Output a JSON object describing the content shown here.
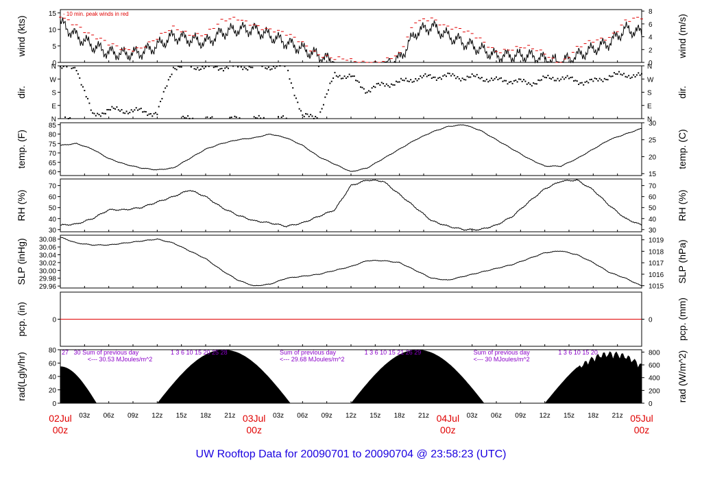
{
  "title": "UW Rooftop Data for 20090701  to  20090704 @ 23:58:23  (UTC)",
  "colors": {
    "wind_peak": "#e00000",
    "pcp_line": "#e00000",
    "purple_note": "#8a00c8",
    "footer": "#1a00e0",
    "date": "#e00000"
  },
  "time_axis": {
    "hours_span": [
      0,
      72
    ],
    "ticks": [
      {
        "h": 3,
        "label": "03z"
      },
      {
        "h": 6,
        "label": "06z"
      },
      {
        "h": 9,
        "label": "09z"
      },
      {
        "h": 12,
        "label": "12z"
      },
      {
        "h": 15,
        "label": "15z"
      },
      {
        "h": 18,
        "label": "18z"
      },
      {
        "h": 21,
        "label": "21z"
      },
      {
        "h": 27,
        "label": "03z"
      },
      {
        "h": 30,
        "label": "06z"
      },
      {
        "h": 33,
        "label": "09z"
      },
      {
        "h": 36,
        "label": "12z"
      },
      {
        "h": 39,
        "label": "15z"
      },
      {
        "h": 42,
        "label": "18z"
      },
      {
        "h": 45,
        "label": "21z"
      },
      {
        "h": 51,
        "label": "03z"
      },
      {
        "h": 54,
        "label": "06z"
      },
      {
        "h": 57,
        "label": "09z"
      },
      {
        "h": 60,
        "label": "12z"
      },
      {
        "h": 63,
        "label": "15z"
      },
      {
        "h": 66,
        "label": "18z"
      },
      {
        "h": 69,
        "label": "21z"
      }
    ],
    "dates": [
      {
        "h": 0,
        "line1": "02Jul",
        "line2": "00z"
      },
      {
        "h": 24,
        "line1": "03Jul",
        "line2": "00z"
      },
      {
        "h": 48,
        "line1": "04Jul",
        "line2": "00z"
      },
      {
        "h": 72,
        "line1": "05Jul",
        "line2": "00z"
      }
    ]
  },
  "panels": {
    "wind": {
      "left_label": "wind (kts)",
      "right_label": "wind (m/s)",
      "left_ticks": [
        "0",
        "5",
        "10",
        "15"
      ],
      "right_ticks": [
        "0",
        "2",
        "4",
        "6",
        "8"
      ],
      "note": "- 10 min. peak winds in red"
    },
    "dir": {
      "left_label": "dir.",
      "right_label": "dir.",
      "ticks": [
        "N",
        "E",
        "S",
        "W",
        "N"
      ]
    },
    "temp": {
      "left_label": "temp. (F)",
      "right_label": "temp. (C)",
      "left_ticks": [
        "60",
        "65",
        "70",
        "75",
        "80",
        "85"
      ],
      "right_ticks": [
        "15",
        "20",
        "25",
        "30"
      ]
    },
    "rh": {
      "left_label": "RH (%)",
      "right_label": "RH (%)",
      "left_ticks": [
        "30",
        "40",
        "50",
        "60",
        "70"
      ],
      "right_ticks": [
        "30",
        "40",
        "50",
        "60",
        "70"
      ]
    },
    "slp": {
      "left_label": "SLP (inHg)",
      "right_label": "SLP (hPa)",
      "left_ticks": [
        "29.96",
        "29.98",
        "30.00",
        "30.02",
        "30.04",
        "30.06",
        "30.08"
      ],
      "right_ticks": [
        "1015",
        "1016",
        "1017",
        "1018",
        "1019"
      ]
    },
    "pcp": {
      "left_label": "pcp. (in)",
      "right_label": "pcp. (mm)",
      "left_ticks": [
        "0"
      ],
      "right_ticks": [
        "0"
      ]
    },
    "rad": {
      "left_label": "rad(Lgly/hr)",
      "right_label": "rad (W/m^2)",
      "left_ticks": [
        "0",
        "20",
        "40",
        "60",
        "80"
      ],
      "right_ticks": [
        "0",
        "200",
        "400",
        "600",
        "800"
      ],
      "notes": [
        {
          "h": 1.5,
          "row": 1,
          "text": "30  Sum of previous day"
        },
        {
          "h": 0.0,
          "row": 1,
          "text": "27"
        },
        {
          "h": 3.2,
          "row": 2,
          "text": "<--- 30.53 MJoules/m^2"
        },
        {
          "h": 27.0,
          "row": 1,
          "text": "Sum of previous day"
        },
        {
          "h": 27.0,
          "row": 2,
          "text": "<--- 29.68 MJoules/m^2"
        },
        {
          "h": 51.0,
          "row": 1,
          "text": "Sum of previous day"
        },
        {
          "h": 51.0,
          "row": 2,
          "text": "<--- 30 MJoules/m^2"
        },
        {
          "h": 13.5,
          "row": 1,
          "text": "1    3    6    10  15  20    25   28"
        },
        {
          "h": 37.5,
          "row": 1,
          "text": "1    3    6    10  15  21    26   29"
        },
        {
          "h": 61.5,
          "row": 1,
          "text": "1    3    6    10   15   20"
        }
      ]
    }
  },
  "chart_data": [
    {
      "type": "line",
      "panel": "wind",
      "ylabel": "wind (kts)",
      "ylim": [
        0,
        16
      ],
      "x_hours": [
        0,
        2,
        4,
        6,
        8,
        10,
        12,
        14,
        16,
        18,
        20,
        22,
        24,
        26,
        28,
        30,
        32,
        34,
        36,
        38,
        40,
        42,
        44,
        46,
        48,
        50,
        52,
        54,
        56,
        58,
        60,
        62,
        64,
        66,
        68,
        70,
        72
      ],
      "series": [
        {
          "values": [
            12,
            8,
            5,
            3,
            2.5,
            3,
            5,
            8,
            7,
            6,
            9,
            10,
            10,
            8,
            6,
            4,
            2,
            0,
            0,
            0,
            0,
            1,
            9,
            11,
            8,
            6,
            4,
            2,
            2,
            2,
            1,
            0,
            2,
            4,
            6,
            10,
            9
          ]
        },
        {
          "values": [
            14,
            12,
            8,
            5,
            4,
            5,
            7,
            10,
            9,
            9,
            12,
            13,
            12,
            10,
            8,
            6,
            3,
            1,
            0,
            0,
            1,
            2,
            12,
            14,
            11,
            9,
            7,
            4,
            4,
            4,
            3,
            0,
            4,
            6,
            8,
            13,
            13
          ]
        }
      ]
    },
    {
      "type": "scatter",
      "panel": "dir",
      "ylabel": "dir.",
      "ylim": [
        0,
        360
      ],
      "x_hours": [
        0,
        2,
        4,
        6,
        8,
        10,
        12,
        14,
        16,
        18,
        20,
        22,
        24,
        26,
        28,
        30,
        32,
        34,
        36,
        38,
        40,
        42,
        44,
        46,
        48,
        50,
        52,
        54,
        56,
        58,
        60,
        62,
        64,
        66,
        68,
        70,
        72
      ],
      "values": [
        345,
        350,
        20,
        60,
        55,
        50,
        35,
        355,
        355,
        350,
        350,
        355,
        355,
        355,
        355,
        10,
        20,
        300,
        285,
        190,
        235,
        245,
        275,
        285,
        290,
        280,
        280,
        260,
        260,
        240,
        270,
        280,
        255,
        250,
        290,
        300,
        290
      ]
    },
    {
      "type": "line",
      "panel": "temp",
      "ylabel": "temp. (F)",
      "ylim": [
        58,
        86
      ],
      "x_hours": [
        0,
        2,
        4,
        6,
        8,
        10,
        12,
        14,
        16,
        18,
        20,
        22,
        24,
        26,
        28,
        30,
        32,
        34,
        36,
        38,
        40,
        42,
        44,
        46,
        48,
        50,
        52,
        54,
        56,
        58,
        60,
        62,
        64,
        66,
        68,
        70,
        72
      ],
      "values": [
        74,
        75,
        72,
        67,
        64,
        62,
        61,
        62,
        67,
        72,
        75,
        77,
        78,
        80,
        78,
        74,
        68,
        64,
        60,
        62,
        67,
        72,
        77,
        81,
        84,
        85,
        82,
        77,
        72,
        67,
        63,
        63,
        67,
        72,
        77,
        80,
        83
      ]
    },
    {
      "type": "line",
      "panel": "rh",
      "ylabel": "RH (%)",
      "ylim": [
        28,
        76
      ],
      "x_hours": [
        0,
        2,
        4,
        6,
        8,
        10,
        12,
        14,
        16,
        18,
        20,
        22,
        24,
        26,
        28,
        30,
        32,
        34,
        36,
        38,
        40,
        42,
        44,
        46,
        48,
        50,
        52,
        54,
        56,
        58,
        60,
        62,
        64,
        66,
        68,
        70,
        72
      ],
      "values": [
        34,
        35,
        40,
        48,
        48,
        50,
        55,
        60,
        66,
        60,
        50,
        43,
        38,
        36,
        33,
        36,
        42,
        48,
        70,
        75,
        74,
        62,
        50,
        38,
        33,
        30,
        30,
        34,
        42,
        55,
        67,
        74,
        75,
        66,
        52,
        40,
        34
      ]
    },
    {
      "type": "line",
      "panel": "slp",
      "ylabel": "SLP (inHg)",
      "ylim": [
        29.955,
        30.09
      ],
      "x_hours": [
        0,
        2,
        4,
        6,
        8,
        10,
        12,
        14,
        16,
        18,
        20,
        22,
        24,
        26,
        28,
        30,
        32,
        34,
        36,
        38,
        40,
        42,
        44,
        46,
        48,
        50,
        52,
        54,
        56,
        58,
        60,
        62,
        64,
        66,
        68,
        70,
        72
      ],
      "values": [
        30.085,
        30.07,
        30.065,
        30.065,
        30.07,
        30.075,
        30.08,
        30.07,
        30.05,
        30.03,
        30.0,
        29.975,
        29.96,
        29.965,
        29.98,
        29.985,
        29.99,
        30.0,
        30.01,
        30.025,
        30.025,
        30.02,
        30.0,
        29.98,
        29.975,
        29.985,
        29.995,
        30.005,
        30.015,
        30.03,
        30.045,
        30.05,
        30.04,
        30.02,
        29.995,
        29.98,
        29.96
      ]
    },
    {
      "type": "line",
      "panel": "pcp",
      "ylabel": "pcp. (in)",
      "ylim": [
        -1,
        1
      ],
      "x_hours": [
        0,
        72
      ],
      "values": [
        0,
        0
      ]
    },
    {
      "type": "area",
      "panel": "rad",
      "ylabel": "rad(Lgly/hr)",
      "ylim": [
        0,
        80
      ],
      "days": [
        {
          "start": 12,
          "end": 28.5,
          "peak": 80
        },
        {
          "start": 36,
          "end": 52.5,
          "peak": 80
        },
        {
          "start": 60,
          "end": 72,
          "peak": 78
        }
      ],
      "leading_decline": {
        "start": 0,
        "end": 4.5,
        "value_at_start": 55
      }
    }
  ]
}
